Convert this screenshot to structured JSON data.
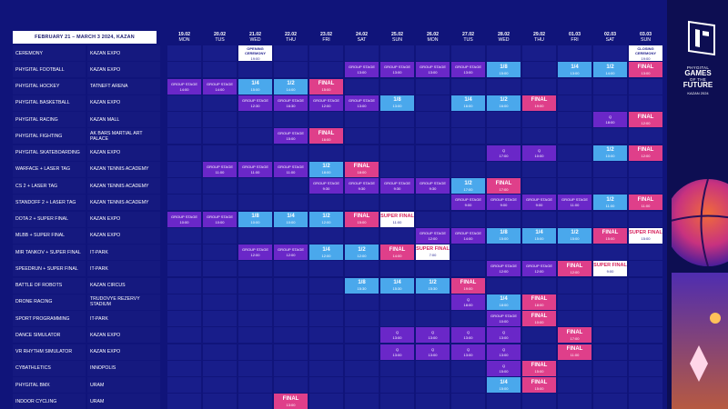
{
  "header": {
    "date_range": "FEBRUARY 21 – MARCH 3 2024, KAZAN"
  },
  "brand": {
    "line1": "PHYGITAL",
    "line2a": "GAMES",
    "line2b": "OF THE",
    "line2c": "FUTURE",
    "line3": "KAZAN 2024"
  },
  "days": [
    {
      "date": "19.02",
      "dow": "MON"
    },
    {
      "date": "20.02",
      "dow": "TUS"
    },
    {
      "date": "21.02",
      "dow": "WED"
    },
    {
      "date": "22.02",
      "dow": "THU"
    },
    {
      "date": "23.02",
      "dow": "FRI"
    },
    {
      "date": "24.02",
      "dow": "SAT"
    },
    {
      "date": "25.02",
      "dow": "SUN"
    },
    {
      "date": "26.02",
      "dow": "MON"
    },
    {
      "date": "27.02",
      "dow": "TUS"
    },
    {
      "date": "28.02",
      "dow": "WED"
    },
    {
      "date": "29.02",
      "dow": "THU"
    },
    {
      "date": "01.03",
      "dow": "FRI"
    },
    {
      "date": "02.03",
      "dow": "SAT"
    },
    {
      "date": "03.03",
      "dow": "SUN"
    }
  ],
  "rows": [
    {
      "name": "CEREMONY",
      "venue": "KAZAN EXPO",
      "events": [
        {
          "d": 2,
          "k": "special",
          "t": "OPENING CEREMONY",
          "tm": "19:00"
        },
        {
          "d": 13,
          "k": "special",
          "t": "CLOSING CEREMONY",
          "tm": "19:00"
        }
      ]
    },
    {
      "name": "PHYGITAL FOOTBALL",
      "venue": "KAZAN EXPO",
      "events": [
        {
          "d": 5,
          "k": "group",
          "t": "GROUP STAGE",
          "tm": "13:00"
        },
        {
          "d": 6,
          "k": "group",
          "t": "GROUP STAGE",
          "tm": "13:00"
        },
        {
          "d": 7,
          "k": "group",
          "t": "GROUP STAGE",
          "tm": "13:00"
        },
        {
          "d": 8,
          "k": "group",
          "t": "GROUP STAGE",
          "tm": "13:00"
        },
        {
          "d": 9,
          "k": "stage",
          "t": "1/8",
          "tm": "15:00"
        },
        {
          "d": 11,
          "k": "stage",
          "t": "1/4",
          "tm": "13:00"
        },
        {
          "d": 12,
          "k": "stage",
          "t": "1/2",
          "tm": "14:00"
        },
        {
          "d": 13,
          "k": "final",
          "t": "FINAL",
          "tm": "13:00"
        }
      ]
    },
    {
      "name": "PHYGITAL HOCKEY",
      "venue": "TATNEFT ARENA",
      "events": [
        {
          "d": 0,
          "k": "group",
          "t": "GROUP STAGE",
          "tm": "14:00"
        },
        {
          "d": 1,
          "k": "group",
          "t": "GROUP STAGE",
          "tm": "14:00"
        },
        {
          "d": 2,
          "k": "stage",
          "t": "1/4",
          "tm": "15:00"
        },
        {
          "d": 3,
          "k": "stage",
          "t": "1/2",
          "tm": "14:00"
        },
        {
          "d": 4,
          "k": "final",
          "t": "FINAL",
          "tm": "15:00"
        }
      ]
    },
    {
      "name": "PHYGITAL BASKETBALL",
      "venue": "KAZAN EXPO",
      "events": [
        {
          "d": 2,
          "k": "group",
          "t": "GROUP STAGE",
          "tm": "12:30"
        },
        {
          "d": 3,
          "k": "group",
          "t": "GROUP STAGE",
          "tm": "16:30"
        },
        {
          "d": 4,
          "k": "group",
          "t": "GROUP STAGE",
          "tm": "12:00"
        },
        {
          "d": 5,
          "k": "group",
          "t": "GROUP STAGE",
          "tm": "13:00"
        },
        {
          "d": 6,
          "k": "stage",
          "t": "1/8",
          "tm": "13:00"
        },
        {
          "d": 8,
          "k": "stage",
          "t": "1/4",
          "tm": "16:00"
        },
        {
          "d": 9,
          "k": "stage",
          "t": "1/2",
          "tm": "16:00"
        },
        {
          "d": 10,
          "k": "final",
          "t": "FINAL",
          "tm": "19:00"
        }
      ]
    },
    {
      "name": "PHYGITAL RACING",
      "venue": "KAZAN MALL",
      "events": [
        {
          "d": 12,
          "k": "group",
          "t": "Q",
          "tm": "18:00"
        },
        {
          "d": 13,
          "k": "final",
          "t": "FINAL",
          "tm": "12:00"
        }
      ]
    },
    {
      "name": "PHYGITAL FIGHTING",
      "venue": "AK BARS MARTIAL ART PALACE",
      "events": [
        {
          "d": 3,
          "k": "group",
          "t": "GROUP STAGE",
          "tm": "15:00"
        },
        {
          "d": 4,
          "k": "final",
          "t": "FINAL",
          "tm": "16:00"
        }
      ]
    },
    {
      "name": "PHYGITAL SKATEBOARDING",
      "venue": "KAZAN EXPO",
      "events": [
        {
          "d": 9,
          "k": "group",
          "t": "Q",
          "tm": "17:00"
        },
        {
          "d": 10,
          "k": "group",
          "t": "Q",
          "tm": "10:00"
        },
        {
          "d": 12,
          "k": "stage",
          "t": "1/2",
          "tm": "10:00"
        },
        {
          "d": 13,
          "k": "final",
          "t": "FINAL",
          "tm": "12:00"
        }
      ]
    },
    {
      "name": "WARFACE + LASER TAG",
      "venue": "KAZAN TENNIS ACADEMY",
      "events": [
        {
          "d": 1,
          "k": "group",
          "t": "GROUP STAGE",
          "tm": "11:00"
        },
        {
          "d": 2,
          "k": "group",
          "t": "GROUP STAGE",
          "tm": "11:00"
        },
        {
          "d": 3,
          "k": "group",
          "t": "GROUP STAGE",
          "tm": "11:00"
        },
        {
          "d": 4,
          "k": "stage",
          "t": "1/2",
          "tm": "18:00"
        },
        {
          "d": 5,
          "k": "final",
          "t": "FINAL",
          "tm": "18:00"
        }
      ]
    },
    {
      "name": "CS 2 + LASER TAG",
      "venue": "KAZAN TENNIS ACADEMY",
      "events": [
        {
          "d": 4,
          "k": "group",
          "t": "GROUP STAGE",
          "tm": "9:30"
        },
        {
          "d": 5,
          "k": "group",
          "t": "GROUP STAGE",
          "tm": "9:30"
        },
        {
          "d": 6,
          "k": "group",
          "t": "GROUP STAGE",
          "tm": "9:30"
        },
        {
          "d": 7,
          "k": "group",
          "t": "GROUP STAGE",
          "tm": "9:30"
        },
        {
          "d": 8,
          "k": "stage",
          "t": "1/2",
          "tm": "17:00"
        },
        {
          "d": 9,
          "k": "final",
          "t": "FINAL",
          "tm": "17:00"
        }
      ]
    },
    {
      "name": "STANDOFF 2 + LASER TAG",
      "venue": "KAZAN TENNIS ACADEMY",
      "events": [
        {
          "d": 8,
          "k": "group",
          "t": "GROUP STAGE",
          "tm": "9:00"
        },
        {
          "d": 9,
          "k": "group",
          "t": "GROUP STAGE",
          "tm": "9:00"
        },
        {
          "d": 10,
          "k": "group",
          "t": "GROUP STAGE",
          "tm": "9:00"
        },
        {
          "d": 11,
          "k": "group",
          "t": "GROUP STAGE",
          "tm": "11:00"
        },
        {
          "d": 12,
          "k": "stage",
          "t": "1/2",
          "tm": "11:00"
        },
        {
          "d": 13,
          "k": "final",
          "t": "FINAL",
          "tm": "11:00"
        }
      ]
    },
    {
      "name": "DOTA 2 + SUPER FINAL",
      "venue": "KAZAN EXPO",
      "events": [
        {
          "d": 0,
          "k": "group",
          "t": "GROUP STAGE",
          "tm": "10:00"
        },
        {
          "d": 1,
          "k": "group",
          "t": "GROUP STAGE",
          "tm": "10:00"
        },
        {
          "d": 2,
          "k": "stage",
          "t": "1/8",
          "tm": "10:00"
        },
        {
          "d": 3,
          "k": "stage",
          "t": "1/4",
          "tm": "10:00"
        },
        {
          "d": 4,
          "k": "stage",
          "t": "1/2",
          "tm": "12:00"
        },
        {
          "d": 5,
          "k": "final",
          "t": "FINAL",
          "tm": "15:00"
        },
        {
          "d": 6,
          "k": "special",
          "t": "SUPER FINAL",
          "tm": "11:00",
          "red": true
        }
      ]
    },
    {
      "name": "MLBB + SUPER FINAL",
      "venue": "KAZAN EXPO",
      "events": [
        {
          "d": 7,
          "k": "group",
          "t": "GROUP STAGE",
          "tm": "12:00"
        },
        {
          "d": 8,
          "k": "group",
          "t": "GROUP STAGE",
          "tm": "14:00"
        },
        {
          "d": 9,
          "k": "stage",
          "t": "1/8",
          "tm": "15:00"
        },
        {
          "d": 10,
          "k": "stage",
          "t": "1/4",
          "tm": "15:00"
        },
        {
          "d": 11,
          "k": "stage",
          "t": "1/2",
          "tm": "15:00"
        },
        {
          "d": 12,
          "k": "final",
          "t": "FINAL",
          "tm": "15:00"
        },
        {
          "d": 13,
          "k": "special",
          "t": "SUPER FINAL",
          "tm": "15:00",
          "red": true
        }
      ]
    },
    {
      "name": "MIR TANKOV + SUPER FINAL",
      "venue": "IT-PARK",
      "events": [
        {
          "d": 2,
          "k": "group",
          "t": "GROUP STAGE",
          "tm": "12:00"
        },
        {
          "d": 3,
          "k": "group",
          "t": "GROUP STAGE",
          "tm": "12:00"
        },
        {
          "d": 4,
          "k": "stage",
          "t": "1/4",
          "tm": "12:00"
        },
        {
          "d": 5,
          "k": "stage",
          "t": "1/2",
          "tm": "12:00"
        },
        {
          "d": 6,
          "k": "final",
          "t": "FINAL",
          "tm": "14:00"
        },
        {
          "d": 7,
          "k": "special",
          "t": "SUPER FINAL",
          "tm": "7:00",
          "red": true
        }
      ]
    },
    {
      "name": "SPEEDRUN + SUPER FINAL",
      "venue": "IT-PARK",
      "events": [
        {
          "d": 9,
          "k": "group",
          "t": "GROUP STAGE",
          "tm": "12:00"
        },
        {
          "d": 10,
          "k": "group",
          "t": "GROUP STAGE",
          "tm": "12:00"
        },
        {
          "d": 11,
          "k": "final",
          "t": "FINAL",
          "tm": "12:00"
        },
        {
          "d": 12,
          "k": "special",
          "t": "SUPER FINAL",
          "tm": "9:00",
          "red": true
        }
      ]
    },
    {
      "name": "BATTLE OF ROBOTS",
      "venue": "KAZAN CIRCUS",
      "events": [
        {
          "d": 5,
          "k": "stage",
          "t": "1/8",
          "tm": "15:30"
        },
        {
          "d": 6,
          "k": "stage",
          "t": "1/4",
          "tm": "15:30"
        },
        {
          "d": 7,
          "k": "stage",
          "t": "1/2",
          "tm": "15:30"
        },
        {
          "d": 8,
          "k": "final",
          "t": "FINAL",
          "tm": "19:00"
        }
      ]
    },
    {
      "name": "DRONE RACING",
      "venue": "TRUDOVYE REZERVY STADIUM",
      "events": [
        {
          "d": 8,
          "k": "group",
          "t": "Q",
          "tm": "18:00"
        },
        {
          "d": 9,
          "k": "stage",
          "t": "1/4",
          "tm": "18:00"
        },
        {
          "d": 10,
          "k": "final",
          "t": "FINAL",
          "tm": "18:00"
        }
      ]
    },
    {
      "name": "SPORT PROGRAMMING",
      "venue": "IT-PARK",
      "events": [
        {
          "d": 9,
          "k": "group",
          "t": "GROUP STAGE",
          "tm": "10:00"
        },
        {
          "d": 10,
          "k": "final",
          "t": "FINAL",
          "tm": "10:00"
        }
      ]
    },
    {
      "name": "DANCE SIMULATOR",
      "venue": "KAZAN EXPO",
      "events": [
        {
          "d": 6,
          "k": "group",
          "t": "Q",
          "tm": "13:00"
        },
        {
          "d": 7,
          "k": "group",
          "t": "Q",
          "tm": "13:00"
        },
        {
          "d": 8,
          "k": "group",
          "t": "Q",
          "tm": "13:00"
        },
        {
          "d": 9,
          "k": "group",
          "t": "Q",
          "tm": "13:00"
        },
        {
          "d": 11,
          "k": "final",
          "t": "FINAL",
          "tm": "17:00"
        }
      ]
    },
    {
      "name": "VR RHYTHM SIMULATOR",
      "venue": "KAZAN EXPO",
      "events": [
        {
          "d": 6,
          "k": "group",
          "t": "Q",
          "tm": "13:00"
        },
        {
          "d": 7,
          "k": "group",
          "t": "Q",
          "tm": "13:00"
        },
        {
          "d": 8,
          "k": "group",
          "t": "Q",
          "tm": "13:00"
        },
        {
          "d": 9,
          "k": "group",
          "t": "Q",
          "tm": "13:00"
        },
        {
          "d": 11,
          "k": "final",
          "t": "FINAL",
          "tm": "11:00"
        }
      ]
    },
    {
      "name": "CYBATHLETICS",
      "venue": "INNOPOLIS",
      "events": [
        {
          "d": 9,
          "k": "group",
          "t": "Q",
          "tm": "15:00"
        },
        {
          "d": 10,
          "k": "final",
          "t": "FINAL",
          "tm": "15:00"
        }
      ]
    },
    {
      "name": "PHYGITAL BMX",
      "venue": "URAM",
      "events": [
        {
          "d": 9,
          "k": "stage",
          "t": "1/4",
          "tm": "15:00"
        },
        {
          "d": 10,
          "k": "final",
          "t": "FINAL",
          "tm": "15:00"
        }
      ]
    },
    {
      "name": "INDOOR CYCLING",
      "venue": "URAM",
      "events": [
        {
          "d": 3,
          "k": "final",
          "t": "FINAL",
          "tm": "13:00"
        }
      ]
    }
  ]
}
